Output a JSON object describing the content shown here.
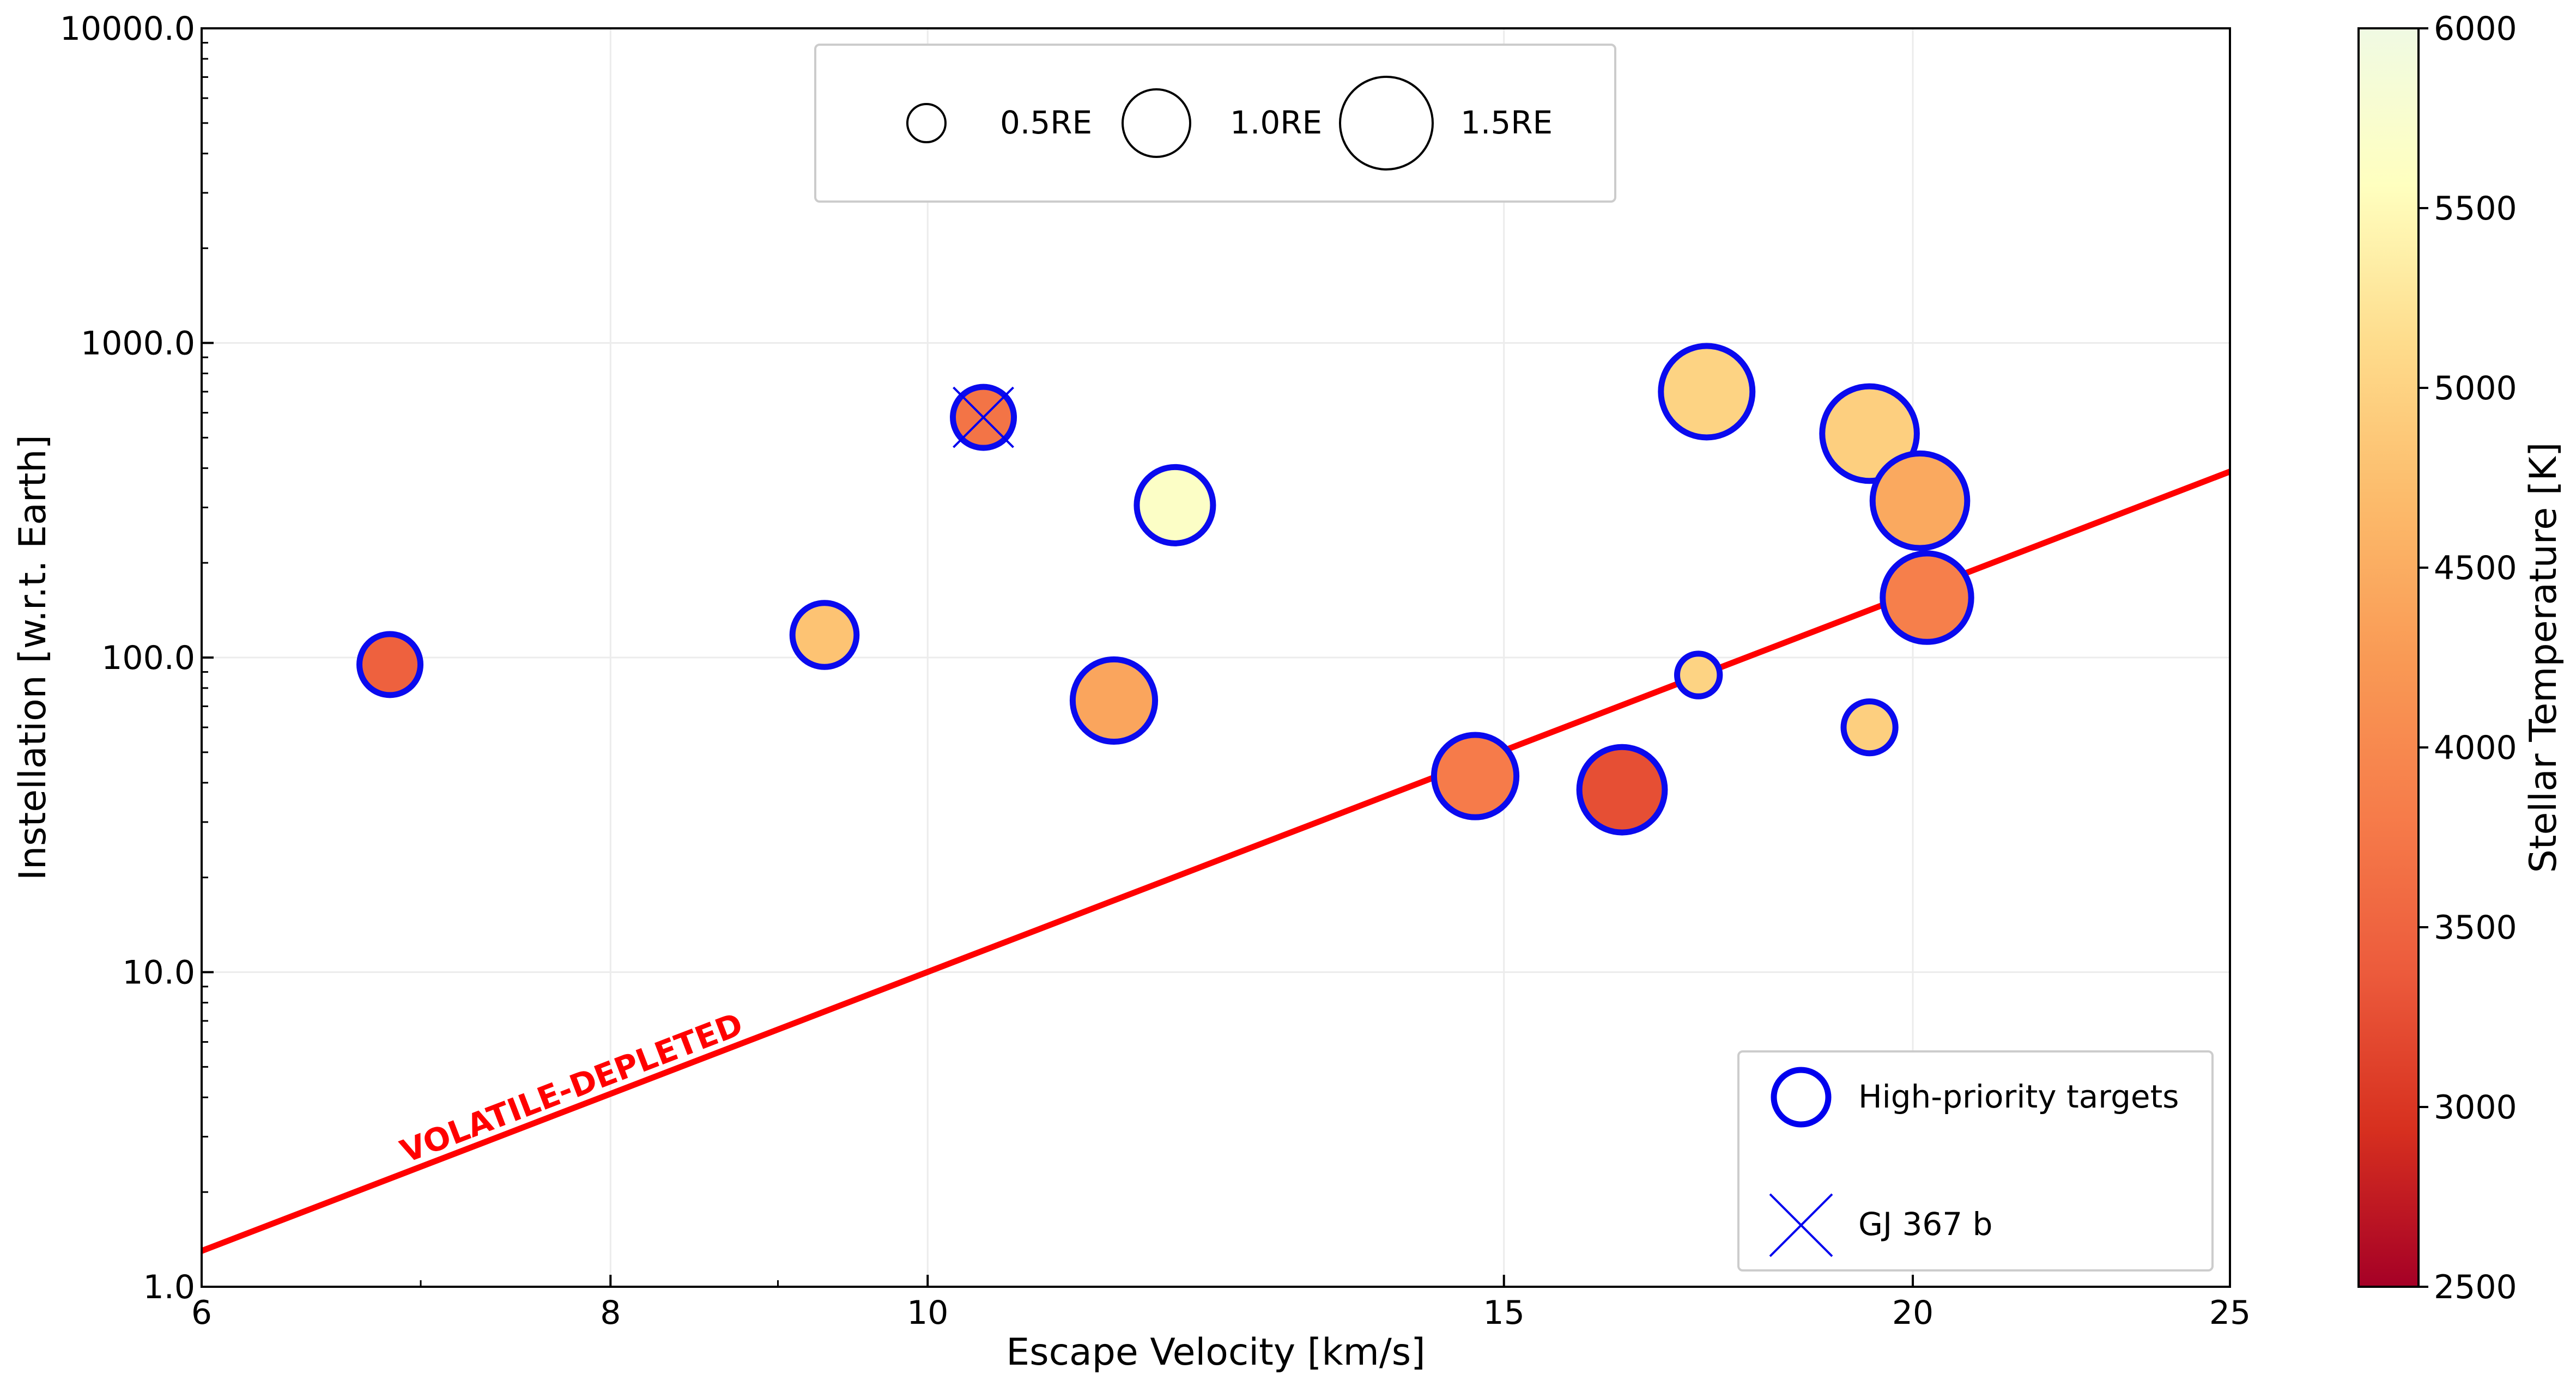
{
  "chart_data": {
    "type": "scatter",
    "xlabel": "Escape Velocity [km/s]",
    "ylabel": "Instellation [w.r.t. Earth]",
    "x_scale": "log",
    "y_scale": "log",
    "xlim": [
      6,
      25
    ],
    "ylim": [
      1,
      10000
    ],
    "x_ticks": [
      {
        "value": 6,
        "label": "6"
      },
      {
        "value": 8,
        "label": "8"
      },
      {
        "value": 10,
        "label": "10"
      },
      {
        "value": 15,
        "label": "15"
      },
      {
        "value": 20,
        "label": "20"
      },
      {
        "value": 25,
        "label": "25"
      }
    ],
    "y_ticks": [
      {
        "value": 1,
        "label": "1.0"
      },
      {
        "value": 10,
        "label": "10.0"
      },
      {
        "value": 100,
        "label": "100.0"
      },
      {
        "value": 1000,
        "label": "1000.0"
      },
      {
        "value": 10000,
        "label": "10000.0"
      }
    ],
    "grid": true,
    "colorbar": {
      "label": "Stellar Temperature [K]",
      "min": 2500,
      "max": 6000,
      "colormap": "YlOrRd_r",
      "ticks": [
        {
          "value": 2500,
          "label": "2500"
        },
        {
          "value": 3000,
          "label": "3000"
        },
        {
          "value": 3500,
          "label": "3500"
        },
        {
          "value": 4000,
          "label": "4000"
        },
        {
          "value": 4500,
          "label": "4500"
        },
        {
          "value": 5000,
          "label": "5000"
        },
        {
          "value": 5500,
          "label": "5500"
        },
        {
          "value": 6000,
          "label": "6000"
        }
      ]
    },
    "points": [
      {
        "x": 6.85,
        "y": 95,
        "radius_re": 0.75,
        "teff": 3450
      },
      {
        "x": 9.3,
        "y": 118,
        "radius_re": 0.8,
        "teff": 4800
      },
      {
        "x": 10.4,
        "y": 580,
        "radius_re": 0.75,
        "teff": 3700
      },
      {
        "x": 11.4,
        "y": 73,
        "radius_re": 1.1,
        "teff": 4400
      },
      {
        "x": 11.9,
        "y": 305,
        "radius_re": 1.0,
        "teff": 5650
      },
      {
        "x": 14.7,
        "y": 42,
        "radius_re": 1.1,
        "teff": 3800
      },
      {
        "x": 16.3,
        "y": 38,
        "radius_re": 1.15,
        "teff": 3250
      },
      {
        "x": 17.2,
        "y": 88,
        "radius_re": 0.45,
        "teff": 5000
      },
      {
        "x": 17.3,
        "y": 700,
        "radius_re": 1.25,
        "teff": 5000
      },
      {
        "x": 19.4,
        "y": 60,
        "radius_re": 0.6,
        "teff": 4950
      },
      {
        "x": 19.4,
        "y": 515,
        "radius_re": 1.3,
        "teff": 4950
      },
      {
        "x": 20.1,
        "y": 315,
        "radius_re": 1.3,
        "teff": 4450
      },
      {
        "x": 20.2,
        "y": 155,
        "radius_re": 1.2,
        "teff": 3850
      }
    ],
    "highlight": {
      "name": "GJ 367 b",
      "x": 10.4,
      "y": 580
    },
    "line": {
      "label": "VOLATILE-DEPLETED",
      "color": "#ff0000",
      "x": [
        6,
        25
      ],
      "y": [
        1.3,
        390
      ]
    },
    "size_legend": [
      {
        "label": "0.5RE",
        "radius_re": 0.5
      },
      {
        "label": "1.0RE",
        "radius_re": 1.0
      },
      {
        "label": "1.5RE",
        "radius_re": 1.5
      }
    ],
    "marker_legend": [
      {
        "label": "High-priority targets",
        "marker": "circle-outline",
        "color": "#0000ee"
      },
      {
        "label": "GJ 367 b",
        "marker": "x-cross",
        "color": "#0000ee"
      }
    ]
  }
}
